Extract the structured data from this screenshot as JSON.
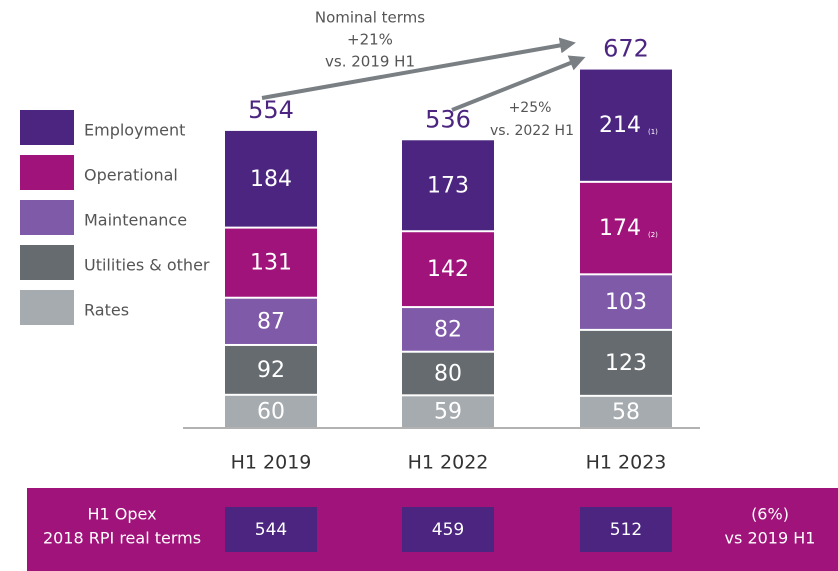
{
  "chart_data": {
    "type": "stacked-bar",
    "categories": [
      "H1 2019",
      "H1 2022",
      "H1 2023"
    ],
    "series": [
      {
        "name": "Rates",
        "color": "#a6abaf",
        "values": [
          60,
          59,
          58
        ]
      },
      {
        "name": "Utilities & other",
        "color": "#666b70",
        "values": [
          92,
          80,
          123
        ]
      },
      {
        "name": "Maintenance",
        "color": "#7e5aa8",
        "values": [
          87,
          82,
          103
        ]
      },
      {
        "name": "Operational",
        "color": "#a0137a",
        "values": [
          131,
          142,
          174
        ],
        "notes": [
          null,
          null,
          "(2)"
        ]
      },
      {
        "name": "Employment",
        "color": "#4b2580",
        "values": [
          184,
          173,
          214
        ],
        "notes": [
          null,
          null,
          "(1)"
        ]
      }
    ],
    "totals": [
      554,
      536,
      672
    ],
    "annotations": [
      [
        "Nominal terms",
        "+21%",
        "vs. 2019 H1"
      ],
      [
        "+25%",
        "vs. 2022 H1"
      ]
    ],
    "opex_panel": {
      "label": [
        "H1 Opex",
        "2018 RPI real terms"
      ],
      "values": [
        544,
        459,
        512
      ],
      "change": [
        "(6%)",
        "vs 2019 H1"
      ]
    }
  }
}
